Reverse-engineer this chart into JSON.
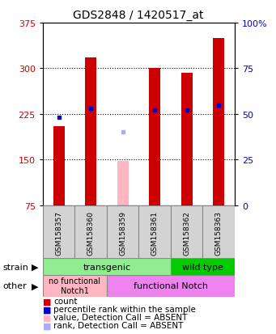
{
  "title": "GDS2848 / 1420517_at",
  "samples": [
    "GSM158357",
    "GSM158360",
    "GSM158359",
    "GSM158361",
    "GSM158362",
    "GSM158363"
  ],
  "count_values": [
    205,
    318,
    null,
    300,
    293,
    350
  ],
  "count_absent": [
    null,
    null,
    148,
    null,
    null,
    null
  ],
  "percentile_values": [
    48,
    53,
    null,
    52,
    52,
    55
  ],
  "percentile_absent": [
    null,
    null,
    40,
    null,
    null,
    null
  ],
  "ylim_left": [
    75,
    375
  ],
  "ylim_right": [
    0,
    100
  ],
  "yticks_left": [
    75,
    150,
    225,
    300,
    375
  ],
  "yticks_right": [
    0,
    25,
    50,
    75,
    100
  ],
  "bar_color_present": "#CC0000",
  "bar_color_absent": "#FFB6C1",
  "dot_color_present": "#0000CC",
  "dot_color_absent": "#AAAAFF",
  "bar_width": 0.35,
  "background_color": "#FFFFFF",
  "title_fontsize": 10,
  "axis_left_color": "#CC0000",
  "axis_right_color": "#0000CC",
  "strain_transgenic_color": "#90EE90",
  "strain_wildtype_color": "#00CC00",
  "other_nofunc_color": "#FFB6C1",
  "other_func_color": "#EE82EE",
  "sample_bg_color": "#D3D3D3",
  "grid_color": "#000000",
  "grid_style": ":",
  "grid_yticks": [
    150,
    225,
    300
  ]
}
